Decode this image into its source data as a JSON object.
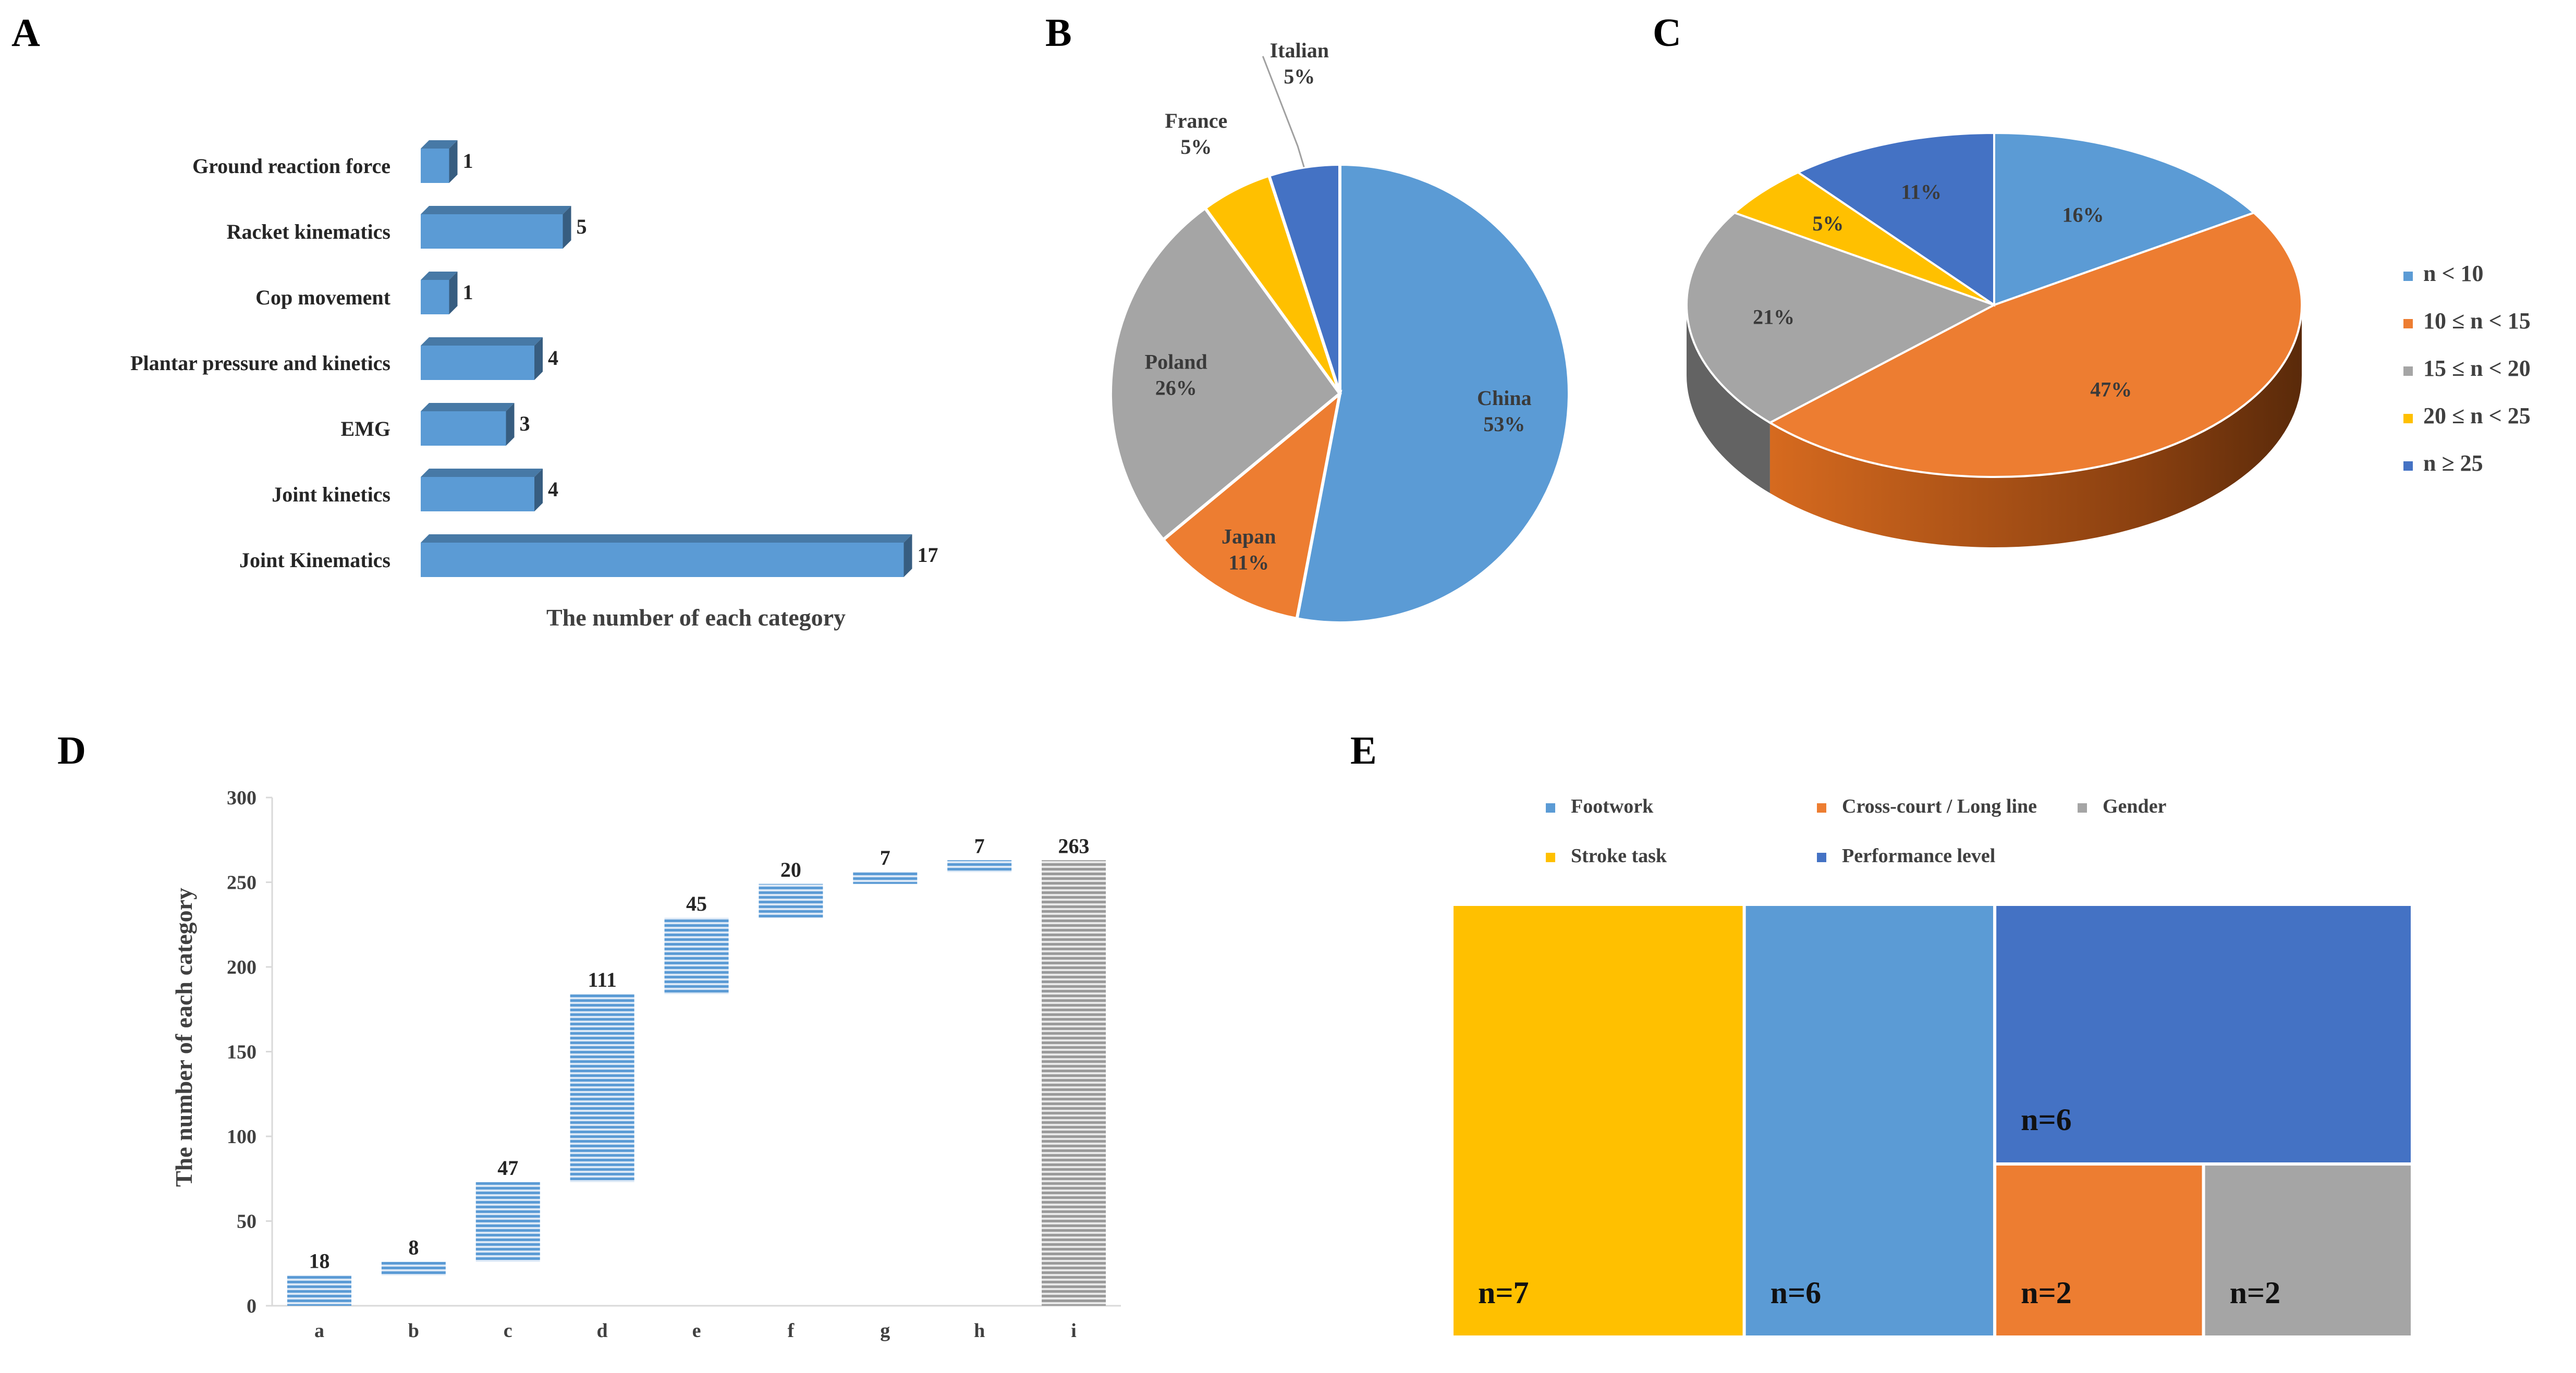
{
  "panels": {
    "A": "A",
    "B": "B",
    "C": "C",
    "D": "D",
    "E": "E"
  },
  "chart_data": [
    {
      "panel": "A",
      "type": "bar",
      "orientation": "horizontal",
      "categories": [
        "Ground reaction force",
        "Racket kinematics",
        "Cop movement",
        "Plantar pressure and kinetics",
        "EMG",
        "Joint kinetics",
        "Joint Kinematics"
      ],
      "values": [
        1,
        5,
        1,
        4,
        3,
        4,
        17
      ],
      "value_labels": [
        "1",
        "5",
        "1",
        "4",
        "3",
        "4",
        "17"
      ],
      "xlabel": "The number of each category",
      "xlim": [
        0,
        17
      ],
      "color": "#5b9bd5",
      "grid": false
    },
    {
      "panel": "B",
      "type": "pie",
      "slices": [
        {
          "label": "China",
          "pct_label": "53%",
          "value": 53,
          "color": "#5b9bd5"
        },
        {
          "label": "Japan",
          "pct_label": "11%",
          "value": 11,
          "color": "#ed7d31"
        },
        {
          "label": "Poland",
          "pct_label": "26%",
          "value": 26,
          "color": "#a5a5a5"
        },
        {
          "label": "France",
          "pct_label": "5%",
          "value": 5,
          "color": "#ffc000"
        },
        {
          "label": "Italian",
          "pct_label": "5%",
          "value": 5,
          "color": "#4472c4"
        }
      ]
    },
    {
      "panel": "C",
      "type": "pie",
      "style": "3d",
      "slices": [
        {
          "legend": "n < 10",
          "pct_label": "16%",
          "value": 16,
          "color": "#5b9bd5"
        },
        {
          "legend": "10 ≤ n  < 15",
          "pct_label": "47%",
          "value": 47,
          "color": "#ed7d31"
        },
        {
          "legend": "15 ≤ n < 20",
          "pct_label": "21%",
          "value": 21,
          "color": "#a5a5a5"
        },
        {
          "legend": "20 ≤ n < 25",
          "pct_label": "5%",
          "value": 5,
          "color": "#ffc000"
        },
        {
          "legend": "n ≥ 25",
          "pct_label": "11%",
          "value": 11,
          "color": "#4472c4"
        }
      ],
      "legend_position": "right"
    },
    {
      "panel": "D",
      "type": "bar",
      "style": "waterfall",
      "categories": [
        "a",
        "b",
        "c",
        "d",
        "e",
        "f",
        "g",
        "h",
        "i"
      ],
      "values": [
        18,
        8,
        47,
        111,
        45,
        20,
        7,
        7,
        263
      ],
      "value_labels": [
        "18",
        "8",
        "47",
        "111",
        "45",
        "20",
        "7",
        "7",
        "263"
      ],
      "total_index": 8,
      "ylabel": "The number of each category",
      "ylim": [
        0,
        300
      ],
      "yticks": [
        "0",
        "50",
        "100",
        "150",
        "200",
        "250",
        "300"
      ],
      "ytick_values": [
        0,
        50,
        100,
        150,
        200,
        250,
        300
      ],
      "bar_color": "#5b9bd5",
      "total_color": "#a5a5a5"
    },
    {
      "panel": "E",
      "type": "treemap",
      "items": [
        {
          "legend": "Stroke task",
          "label": "n=7",
          "value": 7,
          "color": "#ffc000"
        },
        {
          "legend": "Footwork",
          "label": "n=6",
          "value": 6,
          "color": "#5b9bd5"
        },
        {
          "legend": "Performance level",
          "label": "n=6",
          "value": 6,
          "color": "#4472c4"
        },
        {
          "legend": "Cross-court / Long line",
          "label": "n=2",
          "value": 2,
          "color": "#ed7d31"
        },
        {
          "legend": "Gender",
          "label": "n=2",
          "value": 2,
          "color": "#a5a5a5"
        }
      ],
      "legend_position": "top"
    }
  ]
}
